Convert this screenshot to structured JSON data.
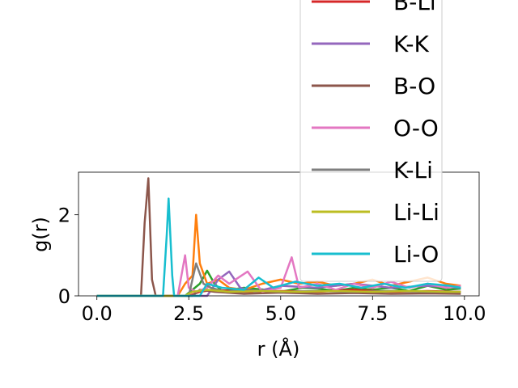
{
  "chart_data": {
    "type": "line",
    "title": "",
    "xlabel": "r (Å)",
    "ylabel": "g(r)",
    "xlim": [
      -0.5,
      10.4
    ],
    "ylim": [
      0,
      3.05
    ],
    "xticks": [
      "0.0",
      "2.5",
      "5.0",
      "7.5",
      "10.0"
    ],
    "yticks": [
      "0",
      "2"
    ],
    "grid": false,
    "legend_position": "upper-right, overflowing the axes",
    "series": [
      {
        "name": "",
        "color": "#2ca02c",
        "points": [
          [
            0,
            0
          ],
          [
            2.4,
            0
          ],
          [
            2.8,
            0.3
          ],
          [
            3.0,
            0.62
          ],
          [
            3.2,
            0.3
          ],
          [
            3.4,
            0.12
          ],
          [
            4.0,
            0.2
          ],
          [
            4.6,
            0.15
          ],
          [
            5.0,
            0.1
          ],
          [
            5.6,
            0.2
          ],
          [
            6.0,
            0.18
          ],
          [
            6.5,
            0.12
          ],
          [
            7.0,
            0.2
          ],
          [
            7.5,
            0.15
          ],
          [
            8.0,
            0.2
          ],
          [
            8.5,
            0.12
          ],
          [
            9.0,
            0.25
          ],
          [
            9.5,
            0.15
          ],
          [
            9.9,
            0.18
          ]
        ]
      },
      {
        "name": "",
        "color": "#ff7f0e",
        "points": [
          [
            0,
            0
          ],
          [
            2.2,
            0
          ],
          [
            2.4,
            0.3
          ],
          [
            2.6,
            0.5
          ],
          [
            2.7,
            2.0
          ],
          [
            2.8,
            0.8
          ],
          [
            3.0,
            0.3
          ],
          [
            3.3,
            0.4
          ],
          [
            3.6,
            0.2
          ],
          [
            4.0,
            0.15
          ],
          [
            4.5,
            0.3
          ],
          [
            5.0,
            0.4
          ],
          [
            5.5,
            0.3
          ],
          [
            6.0,
            0.35
          ],
          [
            6.5,
            0.25
          ],
          [
            7.0,
            0.3
          ],
          [
            7.5,
            0.4
          ],
          [
            8.0,
            0.25
          ],
          [
            8.5,
            0.35
          ],
          [
            9.0,
            0.45
          ],
          [
            9.5,
            0.3
          ],
          [
            9.9,
            0.25
          ]
        ]
      },
      {
        "name": "B-Li",
        "color": "#d62728",
        "points": [
          [
            0,
            0
          ],
          [
            2.5,
            0
          ],
          [
            2.8,
            0.1
          ],
          [
            3.2,
            0.15
          ],
          [
            4.0,
            0.1
          ],
          [
            5.0,
            0.12
          ],
          [
            6.0,
            0.1
          ],
          [
            7.0,
            0.15
          ],
          [
            8.0,
            0.1
          ],
          [
            9.0,
            0.12
          ],
          [
            9.9,
            0.1
          ]
        ]
      },
      {
        "name": "K-K",
        "color": "#9467bd",
        "points": [
          [
            0,
            0
          ],
          [
            3.0,
            0
          ],
          [
            3.3,
            0.4
          ],
          [
            3.6,
            0.6
          ],
          [
            3.9,
            0.2
          ],
          [
            4.3,
            0.1
          ],
          [
            5.0,
            0.25
          ],
          [
            6.0,
            0.2
          ],
          [
            7.0,
            0.3
          ],
          [
            8.0,
            0.2
          ],
          [
            9.0,
            0.25
          ],
          [
            9.9,
            0.2
          ]
        ]
      },
      {
        "name": "B-O",
        "color": "#8c564b",
        "points": [
          [
            0,
            0
          ],
          [
            1.2,
            0
          ],
          [
            1.3,
            1.8
          ],
          [
            1.4,
            2.9
          ],
          [
            1.5,
            0.4
          ],
          [
            1.6,
            0
          ],
          [
            2.6,
            0
          ],
          [
            2.8,
            0.15
          ],
          [
            3.2,
            0.1
          ],
          [
            4.0,
            0.05
          ],
          [
            5.0,
            0.08
          ],
          [
            6.0,
            0.05
          ],
          [
            7.0,
            0.07
          ],
          [
            8.0,
            0.05
          ],
          [
            9.0,
            0.06
          ],
          [
            9.9,
            0.05
          ]
        ]
      },
      {
        "name": "O-O",
        "color": "#e377c2",
        "points": [
          [
            0,
            0
          ],
          [
            2.2,
            0
          ],
          [
            2.4,
            1.0
          ],
          [
            2.5,
            0.2
          ],
          [
            2.7,
            0.1
          ],
          [
            3.0,
            0.2
          ],
          [
            3.3,
            0.5
          ],
          [
            3.6,
            0.3
          ],
          [
            4.1,
            0.6
          ],
          [
            4.5,
            0.1
          ],
          [
            5.0,
            0.2
          ],
          [
            5.3,
            0.95
          ],
          [
            5.5,
            0.2
          ],
          [
            6.0,
            0.3
          ],
          [
            6.5,
            0.15
          ],
          [
            7.0,
            0.3
          ],
          [
            7.5,
            0.2
          ],
          [
            8.0,
            0.35
          ],
          [
            8.5,
            0.2
          ],
          [
            9.0,
            0.3
          ],
          [
            9.5,
            0.2
          ],
          [
            9.9,
            0.25
          ]
        ]
      },
      {
        "name": "K-Li",
        "color": "#7f7f7f",
        "points": [
          [
            0,
            0
          ],
          [
            2.5,
            0
          ],
          [
            2.7,
            0.8
          ],
          [
            2.9,
            0.3
          ],
          [
            3.1,
            0.2
          ],
          [
            3.5,
            0.1
          ],
          [
            4.0,
            0.15
          ],
          [
            5.0,
            0.1
          ],
          [
            6.0,
            0.12
          ],
          [
            7.0,
            0.1
          ],
          [
            8.0,
            0.12
          ],
          [
            9.0,
            0.1
          ],
          [
            9.9,
            0.1
          ]
        ]
      },
      {
        "name": "Li-Li",
        "color": "#bcbd22",
        "points": [
          [
            0,
            0
          ],
          [
            2.4,
            0
          ],
          [
            2.6,
            0.1
          ],
          [
            3.0,
            0.15
          ],
          [
            3.6,
            0.1
          ],
          [
            4.5,
            0.12
          ],
          [
            5.5,
            0.1
          ],
          [
            6.5,
            0.12
          ],
          [
            7.5,
            0.1
          ],
          [
            8.5,
            0.12
          ],
          [
            9.5,
            0.1
          ],
          [
            9.9,
            0.1
          ]
        ]
      },
      {
        "name": "Li-O",
        "color": "#17becf",
        "points": [
          [
            0,
            0
          ],
          [
            1.8,
            0
          ],
          [
            1.9,
            1.5
          ],
          [
            1.95,
            2.4
          ],
          [
            2.05,
            0.5
          ],
          [
            2.1,
            0
          ],
          [
            2.8,
            0
          ],
          [
            3.0,
            0.3
          ],
          [
            3.4,
            0.2
          ],
          [
            4.0,
            0.15
          ],
          [
            4.4,
            0.45
          ],
          [
            4.8,
            0.2
          ],
          [
            5.4,
            0.35
          ],
          [
            6.0,
            0.25
          ],
          [
            6.6,
            0.3
          ],
          [
            7.2,
            0.2
          ],
          [
            7.8,
            0.3
          ],
          [
            8.4,
            0.2
          ],
          [
            9.0,
            0.3
          ],
          [
            9.6,
            0.25
          ],
          [
            9.9,
            0.2
          ]
        ]
      }
    ]
  }
}
